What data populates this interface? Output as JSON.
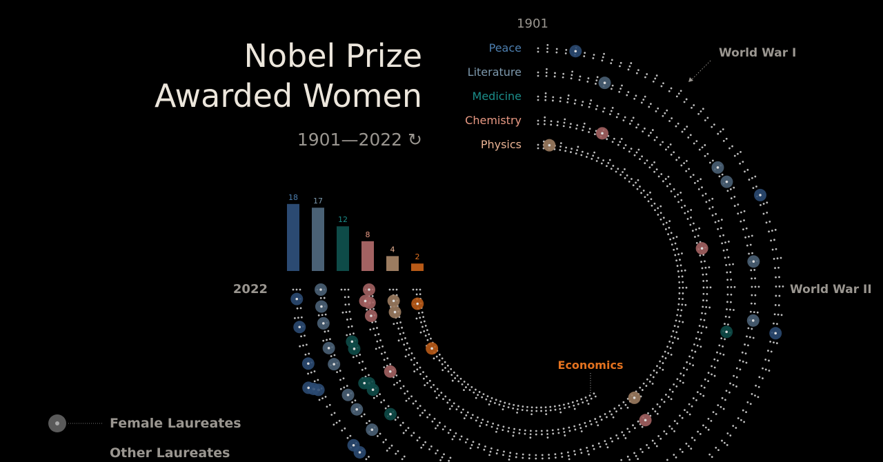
{
  "title_line1": "Nobel Prize",
  "title_line2": "Awarded Women",
  "year_range": "1901—2022",
  "replay_icon": "↻",
  "start_year_label": "1901",
  "end_year_label": "2022",
  "annotations": {
    "ww1": "World War I",
    "ww2": "World War II"
  },
  "legend": {
    "female": "Female Laureates",
    "other": "Other Laureates"
  },
  "chart_data": {
    "type": "radial-dot-spiral",
    "start_year": 1901,
    "end_year": 2022,
    "categories": [
      {
        "name": "Peace",
        "label_color": "#4d7fb0",
        "color": "#2b4a72",
        "female_total": 18,
        "female_years": [
          1905,
          1931,
          1946,
          1976,
          1976,
          1979,
          1982,
          1991,
          1992,
          1997,
          2003,
          2004,
          2011,
          2011,
          2011,
          2014,
          2018,
          2021
        ]
      },
      {
        "name": "Literature",
        "label_color": "#7d99ad",
        "color": "#4a6175",
        "female_total": 17,
        "female_years": [
          1909,
          1926,
          1928,
          1938,
          1945,
          1966,
          1991,
          1993,
          1996,
          2004,
          2007,
          2009,
          2013,
          2015,
          2018,
          2020,
          2022
        ]
      },
      {
        "name": "Medicine",
        "label_color": "#1b8d8a",
        "color": "#0e4b48",
        "female_total": 12,
        "female_years": [
          1947,
          1977,
          1983,
          1986,
          1988,
          1995,
          2004,
          2008,
          2009,
          2009,
          2014,
          2015
        ]
      },
      {
        "name": "Chemistry",
        "label_color": "#ea9a84",
        "color": "#a36262",
        "female_total": 8,
        "female_years": [
          1911,
          1935,
          1964,
          2009,
          2018,
          2020,
          2020,
          2022
        ]
      },
      {
        "name": "Physics",
        "label_color": "#eab394",
        "color": "#9c7c60",
        "female_total": 4,
        "female_years": [
          1903,
          1963,
          2018,
          2020
        ]
      },
      {
        "name": "Economics",
        "label_color": "#e3721f",
        "color": "#b85a17",
        "female_total": 2,
        "start_year": 1969,
        "female_years": [
          2009,
          2019
        ]
      }
    ]
  }
}
